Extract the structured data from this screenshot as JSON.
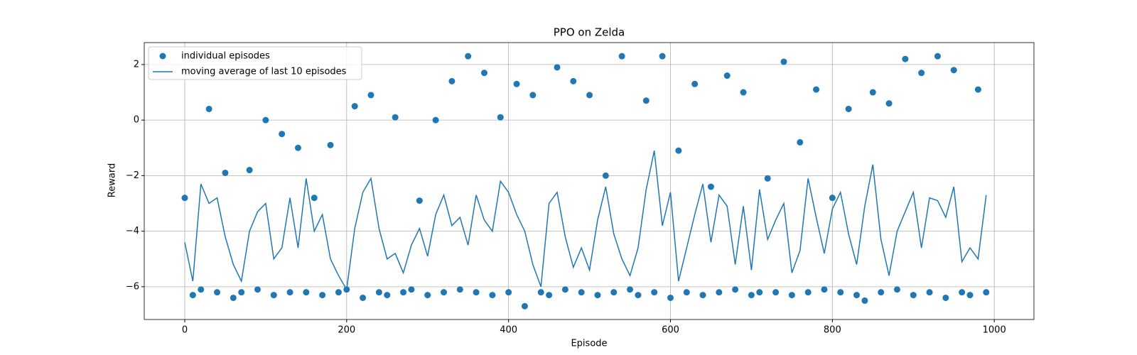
{
  "chart_data": {
    "type": "scatter-line",
    "title": "PPO on Zelda",
    "xlabel": "Episode",
    "ylabel": "Reward",
    "x": [
      0,
      10,
      20,
      30,
      40,
      50,
      60,
      70,
      80,
      90,
      100,
      110,
      120,
      130,
      140,
      150,
      160,
      170,
      180,
      190,
      200,
      210,
      220,
      230,
      240,
      250,
      260,
      270,
      280,
      290,
      300,
      310,
      320,
      330,
      340,
      350,
      360,
      370,
      380,
      390,
      400,
      410,
      420,
      430,
      440,
      450,
      460,
      470,
      480,
      490,
      500,
      510,
      520,
      530,
      540,
      550,
      560,
      570,
      580,
      590,
      600,
      610,
      620,
      630,
      640,
      650,
      660,
      670,
      680,
      690,
      700,
      710,
      720,
      730,
      740,
      750,
      760,
      770,
      780,
      790,
      800,
      810,
      820,
      830,
      840,
      850,
      860,
      870,
      880,
      890,
      900,
      910,
      920,
      930,
      940,
      950,
      960,
      970,
      980,
      990
    ],
    "series": [
      {
        "name": "individual episodes",
        "kind": "scatter",
        "color": "#1f77b4",
        "values": [
          -2.8,
          -6.3,
          -6.1,
          0.4,
          -6.2,
          -1.9,
          -6.4,
          -6.2,
          -1.8,
          -6.1,
          0.0,
          -6.3,
          -0.5,
          -6.2,
          -1.0,
          -6.2,
          -2.8,
          -6.3,
          -0.9,
          -6.2,
          -6.1,
          0.5,
          -6.4,
          0.9,
          -6.2,
          -6.3,
          0.1,
          -6.2,
          -6.1,
          -2.9,
          -6.3,
          0.0,
          -6.2,
          1.4,
          -6.1,
          2.3,
          -6.2,
          1.7,
          -6.3,
          0.1,
          -6.2,
          1.3,
          -6.7,
          0.9,
          -6.2,
          -6.3,
          1.9,
          -6.1,
          1.4,
          -6.2,
          0.9,
          -6.3,
          -2.0,
          -6.2,
          2.3,
          -6.1,
          -6.3,
          0.7,
          -6.2,
          2.3,
          -6.4,
          -1.1,
          -6.2,
          1.3,
          -6.3,
          -2.4,
          -6.2,
          1.6,
          -6.1,
          1.0,
          -6.3,
          -6.2,
          -2.1,
          -6.2,
          2.1,
          -6.3,
          -0.8,
          -6.2,
          1.1,
          -6.1,
          -2.8,
          -6.2,
          0.4,
          -6.3,
          -6.5,
          1.0,
          -6.2,
          0.6,
          -6.1,
          2.2,
          -6.3,
          1.7,
          -6.2,
          2.3,
          -6.4,
          1.8,
          -6.2,
          -6.3,
          1.1,
          -6.2
        ]
      },
      {
        "name": "moving average of last 10 episodes",
        "kind": "line",
        "color": "#1f77b4",
        "values": [
          -4.4,
          -5.8,
          -2.3,
          -3.0,
          -2.8,
          -4.2,
          -5.2,
          -5.8,
          -4.0,
          -3.3,
          -3.0,
          -5.0,
          -4.6,
          -2.8,
          -4.6,
          -2.1,
          -4.0,
          -3.4,
          -5.0,
          -5.6,
          -6.1,
          -3.9,
          -2.6,
          -2.1,
          -3.9,
          -5.0,
          -4.8,
          -5.5,
          -4.5,
          -3.9,
          -4.9,
          -3.4,
          -2.7,
          -3.8,
          -3.5,
          -4.5,
          -2.7,
          -3.6,
          -4.0,
          -2.2,
          -2.6,
          -3.4,
          -4.0,
          -5.2,
          -6.0,
          -3.0,
          -2.6,
          -4.2,
          -5.3,
          -4.6,
          -5.4,
          -3.6,
          -2.4,
          -4.1,
          -5.0,
          -5.6,
          -4.6,
          -2.5,
          -1.1,
          -3.8,
          -2.6,
          -5.8,
          -4.6,
          -3.4,
          -2.3,
          -4.4,
          -2.7,
          -3.1,
          -5.2,
          -3.1,
          -5.4,
          -2.5,
          -4.3,
          -3.6,
          -3.0,
          -5.5,
          -4.7,
          -2.1,
          -3.5,
          -4.8,
          -3.2,
          -2.6,
          -4.1,
          -5.2,
          -3.1,
          -1.6,
          -4.3,
          -5.6,
          -4.0,
          -3.3,
          -2.6,
          -4.6,
          -2.8,
          -2.9,
          -3.5,
          -2.4,
          -5.1,
          -4.6,
          -5.0,
          -2.7
        ]
      }
    ],
    "xlim": [
      -50,
      1049
    ],
    "ylim": [
      -7.18,
      2.79
    ],
    "xticks": [
      0,
      200,
      400,
      600,
      800,
      1000
    ],
    "yticks": [
      {
        "value": -6,
        "label": "−6"
      },
      {
        "value": -4,
        "label": "−4"
      },
      {
        "value": -2,
        "label": "−2"
      },
      0,
      2
    ],
    "grid": true,
    "legend": "upper-left"
  }
}
